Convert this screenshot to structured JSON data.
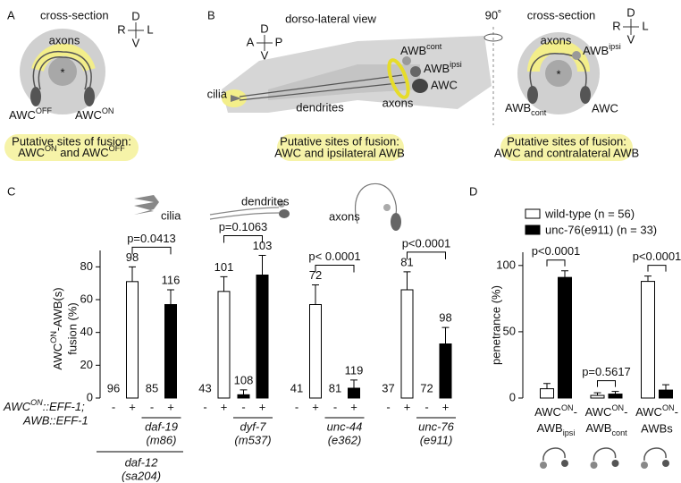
{
  "panel_labels": [
    "A",
    "B",
    "C",
    "D"
  ],
  "diagram_a": {
    "title": "cross-section",
    "compass": [
      "D",
      "R",
      "L",
      "V"
    ],
    "axons": "axons",
    "center": "*",
    "left_cell": [
      "AWC",
      {
        "sup": "OFF"
      }
    ],
    "right_cell": [
      "AWC",
      {
        "sup": "ON"
      }
    ],
    "fusion_heading": "Putative sites of fusion:",
    "fusion_sites": [
      "AWC",
      {
        "sup": "ON"
      },
      " and AWC",
      {
        "sup": "OFF"
      }
    ]
  },
  "diagram_b": {
    "title": "dorso-lateral view",
    "compass": [
      "D",
      "A",
      "P",
      "V"
    ],
    "cilia": "cilia",
    "dendrites": "dendrites",
    "axons": "axons",
    "awb_cont": [
      "AWB",
      {
        "sup": "cont"
      }
    ],
    "awb_ipsi": [
      "AWB",
      {
        "sup": "ipsi"
      }
    ],
    "awc": "AWC",
    "fusion_heading": "Putative sites of fusion:",
    "fusion_sites": "AWC and ipsilateral AWB"
  },
  "rotation": "90˚",
  "diagram_b_cross": {
    "title": "cross-section",
    "compass": [
      "D",
      "R",
      "L",
      "V"
    ],
    "axons": "axons",
    "center": "*",
    "awb_ipsi": [
      "AWB",
      {
        "sup": "ipsi"
      }
    ],
    "awb_cont": [
      "AWB",
      {
        "sub": "cont"
      }
    ],
    "awc": "AWC",
    "fusion_heading": "Putative sites of fusion:",
    "fusion_sites": "AWC and contralateral AWB"
  },
  "chart_data": [
    {
      "type": "bar",
      "y_label": [
        "AWC",
        {
          "sup": "ON"
        },
        "-AWB(s)"
      ],
      "y_label_2": "fusion (%)",
      "categories": [
        "-",
        "+",
        "-",
        "+",
        "-",
        "+",
        "-",
        "+",
        "-",
        "+",
        "-",
        "+",
        "-",
        "+",
        "-",
        "+"
      ],
      "values": [
        0,
        71,
        0,
        57,
        0,
        65,
        2,
        75,
        0,
        57,
        0,
        6,
        0,
        66,
        0,
        33
      ],
      "errors": [
        null,
        9,
        null,
        9,
        null,
        9,
        3,
        12,
        null,
        12,
        null,
        5,
        null,
        11,
        null,
        10
      ],
      "colors": [
        "#ffffff",
        "#ffffff",
        "#000000",
        "#000000",
        "#ffffff",
        "#ffffff",
        "#000000",
        "#000000",
        "#ffffff",
        "#ffffff",
        "#000000",
        "#000000",
        "#ffffff",
        "#ffffff",
        "#000000",
        "#000000"
      ],
      "n_labels": [
        96,
        98,
        85,
        116,
        43,
        101,
        108,
        103,
        41,
        72,
        81,
        119,
        37,
        81,
        72,
        98
      ],
      "row_label": [
        "AWC",
        {
          "sup": "ON"
        },
        "::EFF-1;"
      ],
      "row_label_2": "AWB::EFF-1",
      "groups": [
        {
          "name": "daf-19",
          "allele": "(m86)"
        },
        {
          "name": "dyf-7",
          "allele": "(m537)"
        },
        {
          "name": "unc-44",
          "allele": "(e362)"
        },
        {
          "name": "unc-76",
          "allele": "(e911)"
        }
      ],
      "background": {
        "name": "daf-12",
        "allele": "(sa204)"
      },
      "p_values": [
        "p=0.0413",
        "p=0.1063",
        "p< 0.0001",
        "p<0.0001"
      ],
      "icons": [
        "cilia",
        "dendrites",
        "axons"
      ],
      "ylim": [
        0,
        90
      ],
      "yticks": [
        0,
        20,
        40,
        60,
        80
      ]
    },
    {
      "type": "bar",
      "y_label": "penetrance (%)",
      "categories": [
        {
          "top": [
            "AWC",
            {
              "sup": "ON"
            },
            "-"
          ],
          "bottom": [
            "AWB",
            {
              "sub": "ipsi"
            }
          ]
        },
        {
          "top": [
            "AWC",
            {
              "sup": "ON"
            },
            "-"
          ],
          "bottom": [
            "AWB",
            {
              "sub": "cont"
            }
          ]
        },
        {
          "top": [
            "AWC",
            {
              "sup": "ON"
            },
            "-"
          ],
          "bottom": "AWBs"
        }
      ],
      "series": [
        {
          "name": "wild-type (n = 56)",
          "color": "#ffffff",
          "values": [
            7,
            2,
            88
          ],
          "errors": [
            4,
            2,
            4
          ]
        },
        {
          "name": "unc-76(e911) (n = 33)",
          "color": "#000000",
          "values": [
            91,
            3,
            6
          ],
          "errors": [
            5,
            2,
            4
          ]
        }
      ],
      "p_values": [
        "p<0.0001",
        "p=0.5617",
        "p<0.0001"
      ],
      "ylim": [
        0,
        110
      ],
      "yticks": [
        0,
        50,
        100
      ]
    }
  ]
}
